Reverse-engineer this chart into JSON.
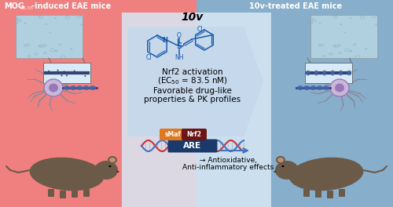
{
  "left_header_text": "MOG",
  "left_header_sub": "35-55",
  "left_header_rest": "-induced EAE mice",
  "right_header_text": "10v-treated EAE mice",
  "left_bg_color": "#F08080",
  "right_bg_color": "#87AECB",
  "center_bg_color": "#D8E8F5",
  "compound_name": "10v",
  "nrf2_text1": "Nrf2 activation",
  "nrf2_text2": "(EC$_{50}$ = 83.5 nM)",
  "drug_text1": "Favorable drug-like",
  "drug_text2": "properties & PK profiles",
  "smaf_label": "sMaf",
  "nrf2_label": "Nrf2",
  "are_label": "ARE",
  "arrow_text": "→ Antioxidative,",
  "effects_text": "Anti-inflammatory effects",
  "smaf_color": "#E07820",
  "nrf2_color": "#6B1515",
  "are_color": "#1B3A6B",
  "text_color_header": "#FFFFFF",
  "text_color_main": "#222222",
  "arrow_color": "#4472C4",
  "chem_color": "#1a5aaa",
  "dna_color1": "#CC3333",
  "dna_color2": "#4472C4",
  "tissue_color": "#A8CDD8",
  "neuron_body_color": "#C0A8D0",
  "neuron_nucleus_color": "#8855AA",
  "dendrite_color": "#888898",
  "axon_myelin_color": "#334488",
  "mouse_body_color": "#6B5A48",
  "mouse_ear_color": "#C09070"
}
